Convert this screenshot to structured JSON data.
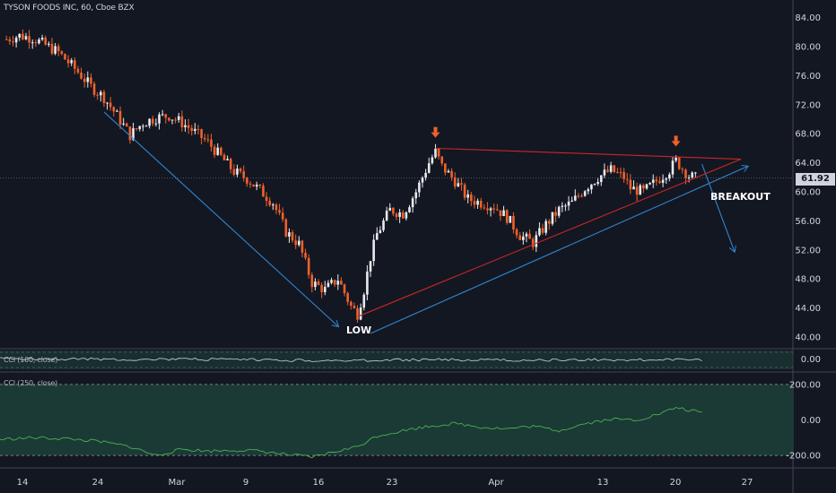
{
  "header": {
    "title": "TYSON FOODS INC, 60, Cboe BZX"
  },
  "indicators": [
    {
      "label": "CCI (100, close)"
    },
    {
      "label": "CCI (250, close)"
    }
  ],
  "annotations": {
    "low": "LOW",
    "breakout": "BREAKOUT"
  },
  "colors": {
    "background": "#131722",
    "candle_up": "#e8eaee",
    "candle_down": "#f0612a",
    "trend_blue": "#2f86d0",
    "triangle_red": "#c62828",
    "arrow_orange": "#f0612a",
    "cci_band": "#1b3a36",
    "cci_line": "#4caf50",
    "cci1_line": "#d1d4dc"
  },
  "chart_data": [
    {
      "type": "candlestick",
      "title": "TYSON FOODS INC, 60, Cboe BZX",
      "last_price": 61.92,
      "y_ticks": [
        "84.00",
        "80.00",
        "76.00",
        "72.00",
        "68.00",
        "64.00",
        "60.00",
        "56.00",
        "52.00",
        "48.00",
        "44.00",
        "40.00"
      ],
      "ylim": [
        39,
        85
      ],
      "x_ticks": [
        "14",
        "24",
        "Mar",
        "9",
        "16",
        "23",
        "Apr",
        "13",
        "20",
        "27"
      ],
      "close_path": [
        {
          "x": 1,
          "y": 81.0
        },
        {
          "x": 3,
          "y": 81.5
        },
        {
          "x": 5,
          "y": 81.2
        },
        {
          "x": 7,
          "y": 80.2
        },
        {
          "x": 9,
          "y": 79.2
        },
        {
          "x": 10,
          "y": 78.3
        },
        {
          "x": 12,
          "y": 76.5
        },
        {
          "x": 14,
          "y": 74.5
        },
        {
          "x": 16,
          "y": 73.0
        },
        {
          "x": 18,
          "y": 70.5
        },
        {
          "x": 20,
          "y": 67.8
        },
        {
          "x": 22,
          "y": 69.5
        },
        {
          "x": 24,
          "y": 70.2
        },
        {
          "x": 26,
          "y": 70.5
        },
        {
          "x": 28,
          "y": 69.5
        },
        {
          "x": 30,
          "y": 68.2
        },
        {
          "x": 32,
          "y": 66.8
        },
        {
          "x": 34,
          "y": 64.8
        },
        {
          "x": 36,
          "y": 62.8
        },
        {
          "x": 38,
          "y": 61.8
        },
        {
          "x": 40,
          "y": 60.2
        },
        {
          "x": 42,
          "y": 58.5
        },
        {
          "x": 44,
          "y": 54.5
        },
        {
          "x": 46,
          "y": 52.8
        },
        {
          "x": 48,
          "y": 47.5
        },
        {
          "x": 50,
          "y": 46.5
        },
        {
          "x": 52,
          "y": 48.0
        },
        {
          "x": 54,
          "y": 44.2
        },
        {
          "x": 55,
          "y": 43.2
        },
        {
          "x": 56,
          "y": 46.5
        },
        {
          "x": 57,
          "y": 51.0
        },
        {
          "x": 58,
          "y": 54.2
        },
        {
          "x": 60,
          "y": 57.5
        },
        {
          "x": 62,
          "y": 57.0
        },
        {
          "x": 64,
          "y": 60.0
        },
        {
          "x": 66,
          "y": 64.0
        },
        {
          "x": 67,
          "y": 65.5
        },
        {
          "x": 68,
          "y": 63.5
        },
        {
          "x": 70,
          "y": 61.5
        },
        {
          "x": 72,
          "y": 59.0
        },
        {
          "x": 74,
          "y": 58.5
        },
        {
          "x": 76,
          "y": 58.0
        },
        {
          "x": 78,
          "y": 56.5
        },
        {
          "x": 80,
          "y": 54.0
        },
        {
          "x": 82,
          "y": 53.0
        },
        {
          "x": 84,
          "y": 55.5
        },
        {
          "x": 86,
          "y": 57.5
        },
        {
          "x": 88,
          "y": 58.5
        },
        {
          "x": 90,
          "y": 60.5
        },
        {
          "x": 92,
          "y": 62.0
        },
        {
          "x": 94,
          "y": 63.0
        },
        {
          "x": 96,
          "y": 62.0
        },
        {
          "x": 97,
          "y": 60.5
        },
        {
          "x": 99,
          "y": 60.0
        },
        {
          "x": 101,
          "y": 61.5
        },
        {
          "x": 103,
          "y": 63.0
        },
        {
          "x": 104,
          "y": 64.3
        },
        {
          "x": 105,
          "y": 63.2
        },
        {
          "x": 106,
          "y": 62.2
        },
        {
          "x": 107,
          "y": 61.9
        }
      ],
      "drawings": {
        "down_trend_arrow": [
          {
            "x": 16,
            "y": 71.0
          },
          {
            "x": 52,
            "y": 41.5
          }
        ],
        "triangle_upper": [
          {
            "x": 67,
            "y": 66.0
          },
          {
            "x": 114,
            "y": 64.5
          }
        ],
        "triangle_lower": [
          {
            "x": 55,
            "y": 42.8
          },
          {
            "x": 114,
            "y": 64.5
          }
        ],
        "support_arrow": [
          {
            "x": 57,
            "y": 40.5
          },
          {
            "x": 115,
            "y": 63.5
          }
        ],
        "breakout_arrow": [
          {
            "x": 108,
            "y": 63.8
          },
          {
            "x": 113,
            "y": 51.8
          }
        ],
        "marker_arrows": [
          {
            "x": 67,
            "y": 67.2
          },
          {
            "x": 104,
            "y": 66.0
          }
        ]
      },
      "x_range": [
        0,
        122
      ]
    },
    {
      "type": "line",
      "title": "CCI (100, close)",
      "y_ticks": [
        "0.00"
      ]
    },
    {
      "type": "line",
      "title": "CCI (250, close)",
      "y_ticks": [
        "200.00",
        "0.00",
        "-200.00"
      ],
      "ylim": [
        -260,
        260
      ],
      "x": [
        0,
        5,
        10,
        15,
        20,
        24,
        28,
        32,
        36,
        40,
        44,
        48,
        52,
        55,
        58,
        62,
        66,
        70,
        74,
        78,
        82,
        86,
        90,
        94,
        98,
        102,
        104,
        106,
        108
      ],
      "values": [
        -110,
        -100,
        -105,
        -120,
        -150,
        -200,
        -165,
        -175,
        -170,
        -175,
        -195,
        -210,
        -175,
        -150,
        -90,
        -60,
        -35,
        -20,
        -40,
        -50,
        -35,
        -60,
        -20,
        5,
        0,
        40,
        70,
        55,
        40
      ]
    }
  ]
}
